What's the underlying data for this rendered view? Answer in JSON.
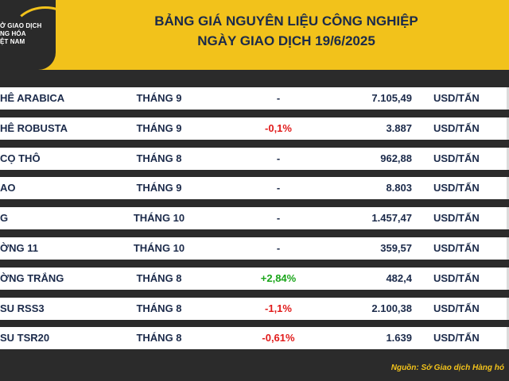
{
  "header": {
    "logo_text": "Ở GIAO DỊCH\nNG HÓA\nỆT NAM",
    "title_line1": "BẢNG GIÁ NGUYÊN LIỆU CÔNG NGHIỆP",
    "title_line2": "NGÀY GIAO DỊCH 19/6/2025"
  },
  "rows": [
    {
      "name": "HÊ ARABICA",
      "month": "THÁNG 9",
      "change": "-",
      "price": "7.105,49",
      "unit": "USD/TẤN"
    },
    {
      "name": "HÊ ROBUSTA",
      "month": "THÁNG 9",
      "change": "-0,1%",
      "price": "3.887",
      "unit": "USD/TẤN"
    },
    {
      "name": "CỌ THÔ",
      "month": "THÁNG 8",
      "change": "-",
      "price": "962,88",
      "unit": "USD/TẤN"
    },
    {
      "name": "AO",
      "month": "THÁNG 9",
      "change": "-",
      "price": "8.803",
      "unit": "USD/TẤN"
    },
    {
      "name": "G",
      "month": "THÁNG 10",
      "change": "-",
      "price": "1.457,47",
      "unit": "USD/TẤN"
    },
    {
      "name": "ỜNG 11",
      "month": "THÁNG 10",
      "change": "-",
      "price": "359,57",
      "unit": "USD/TẤN"
    },
    {
      "name": "ỜNG TRẮNG",
      "month": "THÁNG 8",
      "change": "+2,84%",
      "price": "482,4",
      "unit": "USD/TẤN"
    },
    {
      "name": "SU RSS3",
      "month": "THÁNG 8",
      "change": "-1,1%",
      "price": "2.100,38",
      "unit": "USD/TẤN"
    },
    {
      "name": "SU TSR20",
      "month": "THÁNG 8",
      "change": "-0,61%",
      "price": "1.639",
      "unit": "USD/TẤN"
    }
  ],
  "colors": {
    "negative": "#e11b1b",
    "positive": "#1aa51a",
    "neutral": "#1b2a4a"
  },
  "footer": {
    "source": "Nguồn: Sở Giao dịch Hàng hó"
  }
}
